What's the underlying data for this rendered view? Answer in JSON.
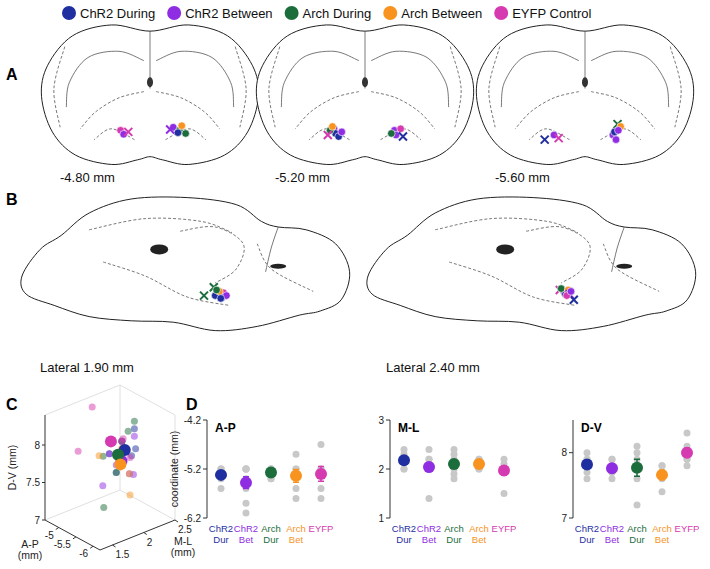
{
  "panel_labels": [
    "A",
    "B",
    "C",
    "D"
  ],
  "series": [
    {
      "name": "ChR2 During",
      "color": "#1f2f9f",
      "category": [
        "ChR2",
        "Dur"
      ],
      "points": [
        [
          -5.2,
          2.4,
          8.0
        ],
        [
          -5.2,
          2.2,
          7.9
        ],
        [
          -5.2,
          2.0,
          7.8
        ],
        [
          -5.3,
          2.3,
          7.7
        ],
        [
          -5.4,
          2.0,
          7.6
        ],
        [
          -5.6,
          2.2,
          7.9
        ]
      ],
      "mean": [
        -5.32,
        2.18,
        7.82
      ],
      "sem": [
        0.06,
        0.07,
        0.06
      ]
    },
    {
      "name": "ChR2 Between",
      "color": "#8e2de2",
      "category": [
        "ChR2",
        "Bet"
      ],
      "points": [
        [
          -5.2,
          2.2,
          7.9
        ],
        [
          -5.2,
          2.0,
          7.8
        ],
        [
          -5.4,
          2.0,
          7.7
        ],
        [
          -5.6,
          2.1,
          7.6
        ],
        [
          -5.2,
          2.4,
          7.9
        ],
        [
          -5.9,
          2.0,
          7.7
        ],
        [
          -6.1,
          1.4,
          7.8
        ],
        [
          -5.2,
          2.2,
          7.7
        ]
      ],
      "mean": [
        -5.48,
        2.04,
        7.76
      ],
      "sem": [
        0.12,
        0.09,
        0.04
      ]
    },
    {
      "name": "Arch During",
      "color": "#1b6e3c",
      "category": [
        "Arch",
        "Dur"
      ],
      "points": [
        [
          -5.2,
          2.4,
          8.1
        ],
        [
          -5.2,
          2.2,
          7.9
        ],
        [
          -5.2,
          1.9,
          7.8
        ],
        [
          -5.4,
          2.0,
          7.6
        ],
        [
          -5.4,
          1.8,
          7.2
        ],
        [
          -5.2,
          2.3,
          8.0
        ]
      ],
      "mean": [
        -5.27,
        2.1,
        7.77
      ],
      "sem": [
        0.04,
        0.09,
        0.13
      ]
    },
    {
      "name": "Arch Between",
      "color": "#f7931e",
      "category": [
        "Arch",
        "Bet"
      ],
      "points": [
        [
          -5.2,
          2.2,
          7.8
        ],
        [
          -4.9,
          2.0,
          7.7
        ],
        [
          -5.6,
          2.1,
          7.6
        ],
        [
          -5.8,
          2.0,
          7.4
        ],
        [
          -5.2,
          2.2,
          7.8
        ]
      ],
      "mean": [
        -5.34,
        2.1,
        7.66
      ],
      "sem": [
        0.13,
        0.04,
        0.07
      ]
    },
    {
      "name": "EYFP Control",
      "color": "#d63ab0",
      "category": [
        "EYFP"
      ],
      "points": [
        [
          -4.7,
          2.0,
          8.3
        ],
        [
          -5.2,
          1.5,
          8.0
        ],
        [
          -5.6,
          2.0,
          8.1
        ],
        [
          -5.8,
          2.0,
          7.9
        ],
        [
          -5.2,
          2.2,
          7.9
        ],
        [
          -5.3,
          2.1,
          7.8
        ]
      ],
      "mean": [
        -5.3,
        1.97,
        8.0
      ],
      "sem": [
        0.15,
        0.09,
        0.07
      ]
    }
  ],
  "coronal": [
    {
      "label": "-4.80 mm",
      "marks": [
        {
          "group": 4,
          "ml": -1.9,
          "dv": 7.7,
          "marker": "circle"
        },
        {
          "group": 1,
          "ml": -1.7,
          "dv": 7.95,
          "marker": "circle"
        },
        {
          "group": 4,
          "ml": -1.4,
          "dv": 7.8,
          "marker": "x"
        },
        {
          "group": 1,
          "ml": 1.5,
          "dv": 7.5,
          "marker": "circle"
        },
        {
          "group": 2,
          "ml": 1.9,
          "dv": 7.7,
          "marker": "circle"
        },
        {
          "group": 2,
          "ml": 2.3,
          "dv": 7.9,
          "marker": "circle"
        },
        {
          "group": 0,
          "ml": 1.8,
          "dv": 7.85,
          "marker": "circle"
        },
        {
          "group": 3,
          "ml": 2.05,
          "dv": 7.4,
          "marker": "circle"
        },
        {
          "group": 1,
          "ml": 1.3,
          "dv": 7.65,
          "marker": "x"
        }
      ]
    },
    {
      "label": "-5.20 mm",
      "marks": [
        {
          "group": 1,
          "ml": -2.0,
          "dv": 7.6,
          "marker": "circle"
        },
        {
          "group": 0,
          "ml": -1.9,
          "dv": 7.9,
          "marker": "circle"
        },
        {
          "group": 2,
          "ml": -2.25,
          "dv": 7.7,
          "marker": "circle"
        },
        {
          "group": 0,
          "ml": -1.7,
          "dv": 8.1,
          "marker": "circle"
        },
        {
          "group": 1,
          "ml": -1.5,
          "dv": 7.8,
          "marker": "circle"
        },
        {
          "group": 3,
          "ml": -2.1,
          "dv": 7.45,
          "marker": "circle"
        },
        {
          "group": 4,
          "ml": -2.4,
          "dv": 8.0,
          "marker": "x"
        },
        {
          "group": 1,
          "ml": 1.9,
          "dv": 7.7,
          "marker": "circle"
        },
        {
          "group": 4,
          "ml": 2.3,
          "dv": 7.6,
          "marker": "circle"
        },
        {
          "group": 1,
          "ml": 2.0,
          "dv": 8.0,
          "marker": "circle"
        },
        {
          "group": 2,
          "ml": 1.7,
          "dv": 7.9,
          "marker": "circle"
        },
        {
          "group": 0,
          "ml": 2.45,
          "dv": 8.1,
          "marker": "x"
        }
      ]
    },
    {
      "label": "-5.60 mm",
      "marks": [
        {
          "group": 0,
          "ml": -2.6,
          "dv": 8.3,
          "marker": "x"
        },
        {
          "group": 1,
          "ml": -2.0,
          "dv": 8.0,
          "marker": "circle"
        },
        {
          "group": 4,
          "ml": -1.7,
          "dv": 8.2,
          "marker": "x"
        },
        {
          "group": 1,
          "ml": 1.8,
          "dv": 8.0,
          "marker": "circle"
        },
        {
          "group": 1,
          "ml": 2.0,
          "dv": 8.3,
          "marker": "circle"
        },
        {
          "group": 2,
          "ml": 2.1,
          "dv": 7.3,
          "marker": "x"
        },
        {
          "group": 3,
          "ml": 2.3,
          "dv": 7.45,
          "marker": "circle"
        },
        {
          "group": 0,
          "ml": 1.9,
          "dv": 7.8,
          "marker": "circle"
        },
        {
          "group": 1,
          "ml": 2.15,
          "dv": 7.7,
          "marker": "circle"
        }
      ]
    }
  ],
  "sagittal": [
    {
      "label": "Lateral 1.90 mm",
      "marks": [
        {
          "group": 2,
          "ap": -4.9,
          "dv": 7.3,
          "marker": "x"
        },
        {
          "group": 2,
          "ap": -4.2,
          "dv": 7.9,
          "marker": "x"
        },
        {
          "group": 1,
          "ap": -5.2,
          "dv": 7.8,
          "marker": "circle"
        },
        {
          "group": 1,
          "ap": -5.5,
          "dv": 8.0,
          "marker": "circle"
        },
        {
          "group": 0,
          "ap": -5.0,
          "dv": 7.9,
          "marker": "circle"
        },
        {
          "group": 4,
          "ap": -5.6,
          "dv": 7.7,
          "marker": "circle"
        },
        {
          "group": 3,
          "ap": -5.3,
          "dv": 7.6,
          "marker": "circle"
        },
        {
          "group": 2,
          "ap": -5.1,
          "dv": 7.5,
          "marker": "circle"
        },
        {
          "group": 1,
          "ap": -5.8,
          "dv": 7.9,
          "marker": "circle"
        },
        {
          "group": 0,
          "ap": -5.4,
          "dv": 8.1,
          "marker": "circle"
        }
      ]
    },
    {
      "label": "Lateral 2.40 mm",
      "marks": [
        {
          "group": 4,
          "ap": -4.9,
          "dv": 7.5,
          "marker": "x"
        },
        {
          "group": 1,
          "ap": -5.2,
          "dv": 7.6,
          "marker": "circle"
        },
        {
          "group": 0,
          "ap": -5.3,
          "dv": 7.8,
          "marker": "circle"
        },
        {
          "group": 2,
          "ap": -5.0,
          "dv": 7.4,
          "marker": "circle"
        },
        {
          "group": 3,
          "ap": -5.5,
          "dv": 7.5,
          "marker": "circle"
        },
        {
          "group": 1,
          "ap": -5.6,
          "dv": 7.8,
          "marker": "x"
        },
        {
          "group": 0,
          "ap": -5.9,
          "dv": 8.2,
          "marker": "x"
        },
        {
          "group": 4,
          "ap": -5.4,
          "dv": 7.9,
          "marker": "circle"
        },
        {
          "group": 1,
          "ap": -5.7,
          "dv": 7.6,
          "marker": "circle"
        }
      ]
    }
  ],
  "chart_data": [
    {
      "type": "scatter3d",
      "xlabel": "A-P (mm)",
      "ylabel": "M-L (mm)",
      "zlabel": "D-V (mm)",
      "xlim": [
        -6.2,
        -4.6
      ],
      "xticks": [
        -6,
        -5.5,
        -5
      ],
      "ylim": [
        1.3,
        2.5
      ],
      "yticks": [
        1.5,
        2,
        2.5
      ],
      "zlim": [
        7,
        8.4
      ],
      "zticks": [
        7,
        7.5,
        8
      ]
    },
    {
      "type": "dot",
      "title": "A-P",
      "ylabel": "coordinate (mm)",
      "ylim": [
        -6.2,
        -4.2
      ],
      "yticks": [
        -6.2,
        -5.2,
        -4.2
      ]
    },
    {
      "type": "dot",
      "title": "M-L",
      "ylim": [
        1,
        3
      ],
      "yticks": [
        1,
        2,
        3
      ]
    },
    {
      "type": "dot",
      "title": "D-V",
      "ylim": [
        7,
        8.5
      ],
      "yticks": [
        7,
        8
      ]
    }
  ]
}
